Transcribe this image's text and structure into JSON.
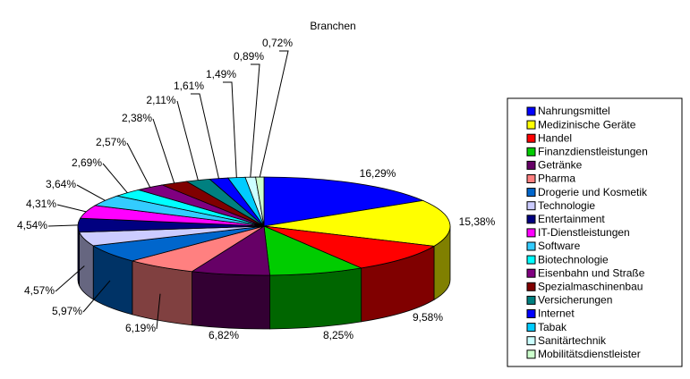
{
  "chart_data": {
    "type": "pie3d",
    "title": "Branchen",
    "categories": [
      "Nahrungsmittel",
      "Medizinische Geräte",
      "Handel",
      "Finanzdienstleistungen",
      "Getränke",
      "Pharma",
      "Drogerie und Kosmetik",
      "Technologie",
      "Entertainment",
      "IT-Dienstleistungen",
      "Software",
      "Biotechnologie",
      "Eisenbahn und Straße",
      "Spezialmaschinenbau",
      "Versicherungen",
      "Internet",
      "Tabak",
      "Sanitärtechnik",
      "Mobilitätsdienstleister"
    ],
    "values": [
      16.29,
      15.38,
      9.58,
      8.25,
      6.82,
      6.19,
      5.97,
      4.57,
      4.54,
      4.31,
      3.64,
      2.69,
      2.57,
      2.38,
      2.11,
      1.61,
      1.49,
      0.89,
      0.72
    ],
    "value_labels": [
      "16,29%",
      "15,38%",
      "9,58%",
      "8,25%",
      "6,82%",
      "6,19%",
      "5,97%",
      "4,57%",
      "4,54%",
      "4,31%",
      "3,64%",
      "2,69%",
      "2,57%",
      "2,38%",
      "2,11%",
      "1,61%",
      "1,49%",
      "0,89%",
      "0,72%"
    ],
    "colors": [
      "#0000ff",
      "#ffff00",
      "#ff0000",
      "#00cc00",
      "#660066",
      "#ff8080",
      "#0066cc",
      "#ccccff",
      "#000080",
      "#ff00ff",
      "#33ccff",
      "#00ffff",
      "#800080",
      "#800000",
      "#008080",
      "#0000ff",
      "#00ccff",
      "#ccffff",
      "#ccffcc"
    ],
    "legend": "right"
  }
}
